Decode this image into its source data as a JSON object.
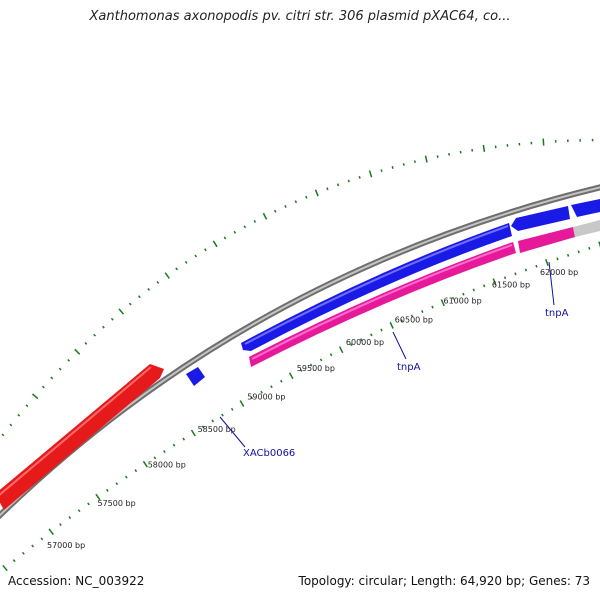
{
  "title": "Xanthomonas axonopodis pv. citri str. 306 plasmid pXAC64, co...",
  "footer": {
    "accession": "Accession: NC_003922",
    "summary": "Topology: circular; Length: 64,920 bp; Genes: 73"
  },
  "map": {
    "topology": "circular",
    "length_bp": 64920,
    "scale_labels": [
      "57000 bp",
      "57500 bp",
      "58000 bp",
      "58500 bp",
      "59000 bp",
      "59500 bp",
      "60000 bp",
      "60500 bp",
      "61000 bp",
      "61500 bp",
      "62000 bp"
    ],
    "gene_labels": [
      "XACb0066",
      "tnpA",
      "tnpA"
    ],
    "colors": {
      "backbone": "#8c8c8c",
      "forward_feature": "#1a1ae6",
      "reverse_red": "#e61a1a",
      "reverse_pink": "#e6199a",
      "ticks": "#1a7a1a",
      "gray_feature": "#c8c8c8",
      "label_text": "#1010a0"
    }
  }
}
